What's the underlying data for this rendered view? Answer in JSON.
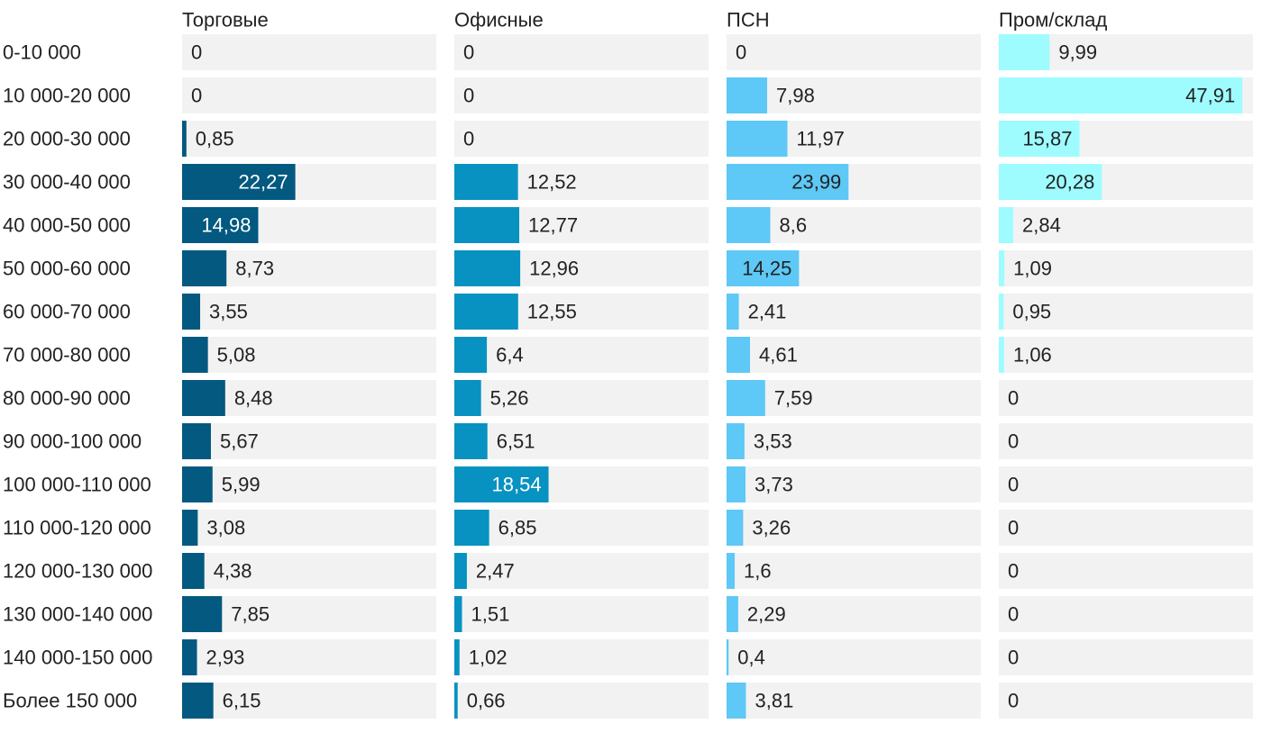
{
  "chart_data": {
    "type": "bar",
    "orientation": "horizontal",
    "layout": "small-multiples",
    "title": "",
    "xlabel": "",
    "ylabel": "",
    "xlim": [
      0,
      50
    ],
    "grid": false,
    "legend": "none",
    "categories": [
      "0-10 000",
      "10 000-20 000",
      "20 000-30 000",
      "30 000-40 000",
      "40 000-50 000",
      "50 000-60 000",
      "60 000-70 000",
      "70 000-80 000",
      "80 000-90 000",
      "90 000-100 000",
      "100 000-110 000",
      "110 000-120 000",
      "120 000-130 000",
      "130 000-140 000",
      "140 000-150 000",
      "Более 150 000"
    ],
    "series": [
      {
        "name": "Торговые",
        "color": "#03597f",
        "values": [
          0,
          0,
          0.85,
          22.27,
          14.98,
          8.73,
          3.55,
          5.08,
          8.48,
          5.67,
          5.99,
          3.08,
          4.38,
          7.85,
          2.93,
          6.15
        ],
        "labels": [
          "0",
          "0",
          "0,85",
          "22,27",
          "14,98",
          "8,73",
          "3,55",
          "5,08",
          "8,48",
          "5,67",
          "5,99",
          "3,08",
          "4,38",
          "7,85",
          "2,93",
          "6,15"
        ]
      },
      {
        "name": "Офисные",
        "color": "#0792c1",
        "values": [
          0,
          0,
          0,
          12.52,
          12.77,
          12.96,
          12.55,
          6.4,
          5.26,
          6.51,
          18.54,
          6.85,
          2.47,
          1.51,
          1.02,
          0.66
        ],
        "labels": [
          "0",
          "0",
          "0",
          "12,52",
          "12,77",
          "12,96",
          "12,55",
          "6,4",
          "5,26",
          "6,51",
          "18,54",
          "6,85",
          "2,47",
          "1,51",
          "1,02",
          "0,66"
        ]
      },
      {
        "name": "ПСН",
        "color": "#5ec8f6",
        "values": [
          0,
          7.98,
          11.97,
          23.99,
          8.6,
          14.25,
          2.41,
          4.61,
          7.59,
          3.53,
          3.73,
          3.26,
          1.6,
          2.29,
          0.4,
          3.81
        ],
        "labels": [
          "0",
          "7,98",
          "11,97",
          "23,99",
          "8,6",
          "14,25",
          "2,41",
          "4,61",
          "7,59",
          "3,53",
          "3,73",
          "3,26",
          "1,6",
          "2,29",
          "0,4",
          "3,81"
        ]
      },
      {
        "name": "Пром/склад",
        "color": "#9efcff",
        "values": [
          9.99,
          47.91,
          15.87,
          20.28,
          2.84,
          1.09,
          0.95,
          1.06,
          0,
          0,
          0,
          0,
          0,
          0,
          0,
          0
        ],
        "labels": [
          "9,99",
          "47,91",
          "15,87",
          "20,28",
          "2,84",
          "1,09",
          "0,95",
          "1,06",
          "0",
          "0",
          "0",
          "0",
          "0",
          "0",
          "0",
          "0"
        ]
      }
    ]
  }
}
